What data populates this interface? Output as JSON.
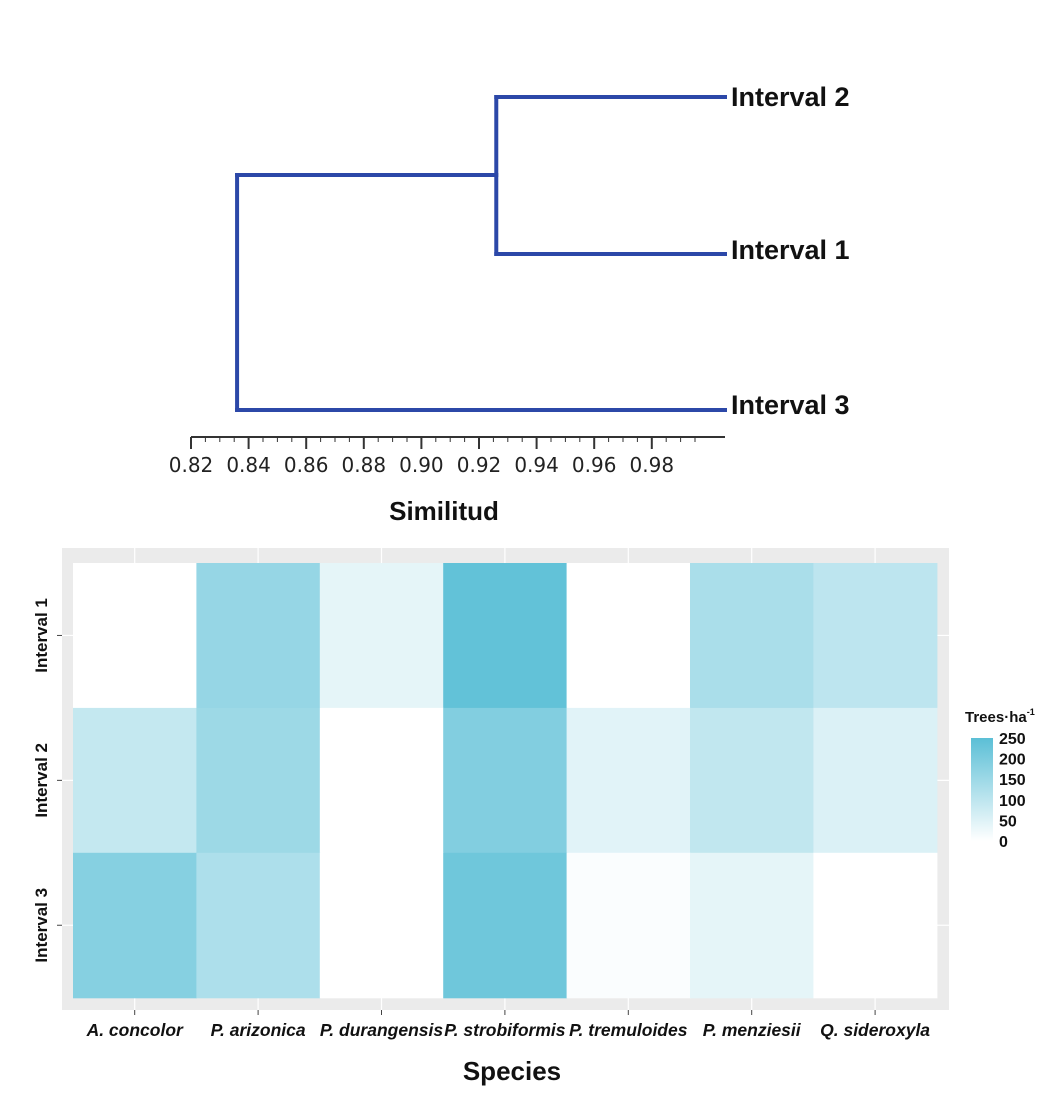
{
  "chart_data": [
    {
      "type": "dendrogram",
      "leaves": [
        "Interval 2",
        "Interval 1",
        "Interval 3"
      ],
      "merges": [
        {
          "members": [
            "Interval 2",
            "Interval 1"
          ],
          "similarity": 0.926
        },
        {
          "members": [
            "Interval 2",
            "Interval 1",
            "Interval 3"
          ],
          "similarity": 0.836
        }
      ],
      "xlabel": "Similitud",
      "xlim": [
        0.82,
        1.0
      ],
      "ticks": [
        0.82,
        0.84,
        0.86,
        0.88,
        0.9,
        0.92,
        0.94,
        0.96,
        0.98
      ],
      "tick_labels": [
        "0.82",
        "0.84",
        "0.86",
        "0.88",
        "0.90",
        "0.92",
        "0.94",
        "0.96",
        "0.98"
      ],
      "line_color": "#2c48a8"
    },
    {
      "type": "heatmap",
      "x_categories": [
        "A. concolor",
        "P. arizonica",
        "P. durangensis",
        "P. strobiformis",
        "P. tremuloides",
        "P. menziesii",
        "Q. sideroxyla"
      ],
      "y_categories": [
        "Interval 1",
        "Interval 2",
        "Interval 3"
      ],
      "values": [
        [
          0,
          160,
          40,
          240,
          0,
          130,
          100
        ],
        [
          90,
          150,
          0,
          190,
          45,
          95,
          55
        ],
        [
          185,
          125,
          0,
          220,
          8,
          40,
          0
        ]
      ],
      "xlabel": "Species",
      "ylabel": "",
      "legend": {
        "title": "Trees·ha",
        "superscript": "-1",
        "ticks": [
          250,
          200,
          150,
          100,
          50,
          0
        ],
        "tick_labels": [
          "250",
          "200",
          "150",
          "100",
          "50",
          "0"
        ],
        "range": [
          0,
          250
        ]
      },
      "color_low": "#ffffff",
      "color_high": "#5bbfd6",
      "panel_background": "#ebebeb",
      "grid_color": "#ffffff"
    }
  ]
}
